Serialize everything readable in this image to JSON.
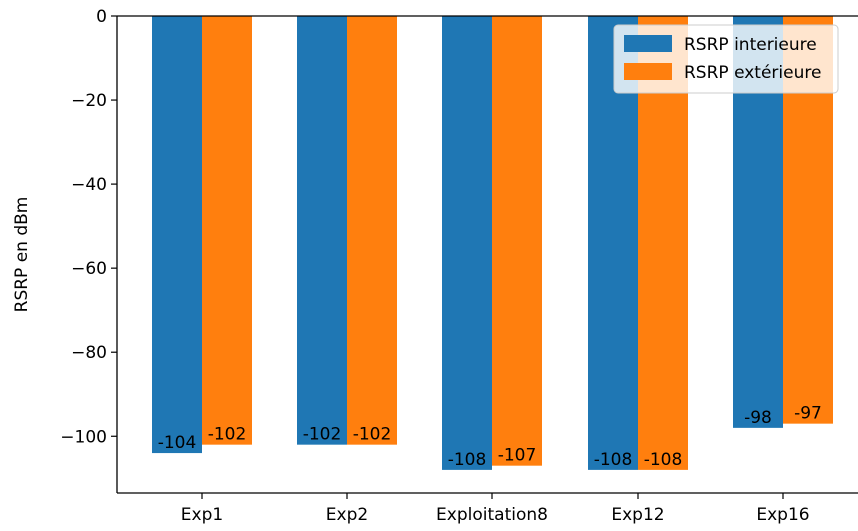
{
  "chart_data": {
    "type": "bar",
    "categories": [
      "Exp1",
      "Exp2",
      "Exploitation8",
      "Exp12",
      "Exp16"
    ],
    "series": [
      {
        "name": "RSRP interieure",
        "values": [
          -104,
          -102,
          -108,
          -108,
          -98
        ],
        "color": "#1f77b4"
      },
      {
        "name": "RSRP extérieure",
        "values": [
          -102,
          -102,
          -107,
          -108,
          -97
        ],
        "color": "#ff7f0e"
      }
    ],
    "data_labels": [
      [
        "-104",
        "-102",
        "-108",
        "-108",
        "-98"
      ],
      [
        "-102",
        "-102",
        "-107",
        "-108",
        "-97"
      ]
    ],
    "xlabel": "",
    "ylabel": "RSRP en dBm",
    "ylim": [
      -113.5,
      0
    ],
    "yticks": [
      0,
      -20,
      -40,
      -60,
      -80,
      -100
    ],
    "ytick_labels": [
      "0",
      "−20",
      "−40",
      "−60",
      "−80",
      "−100"
    ],
    "grid": false,
    "legend_position": "top-right"
  }
}
